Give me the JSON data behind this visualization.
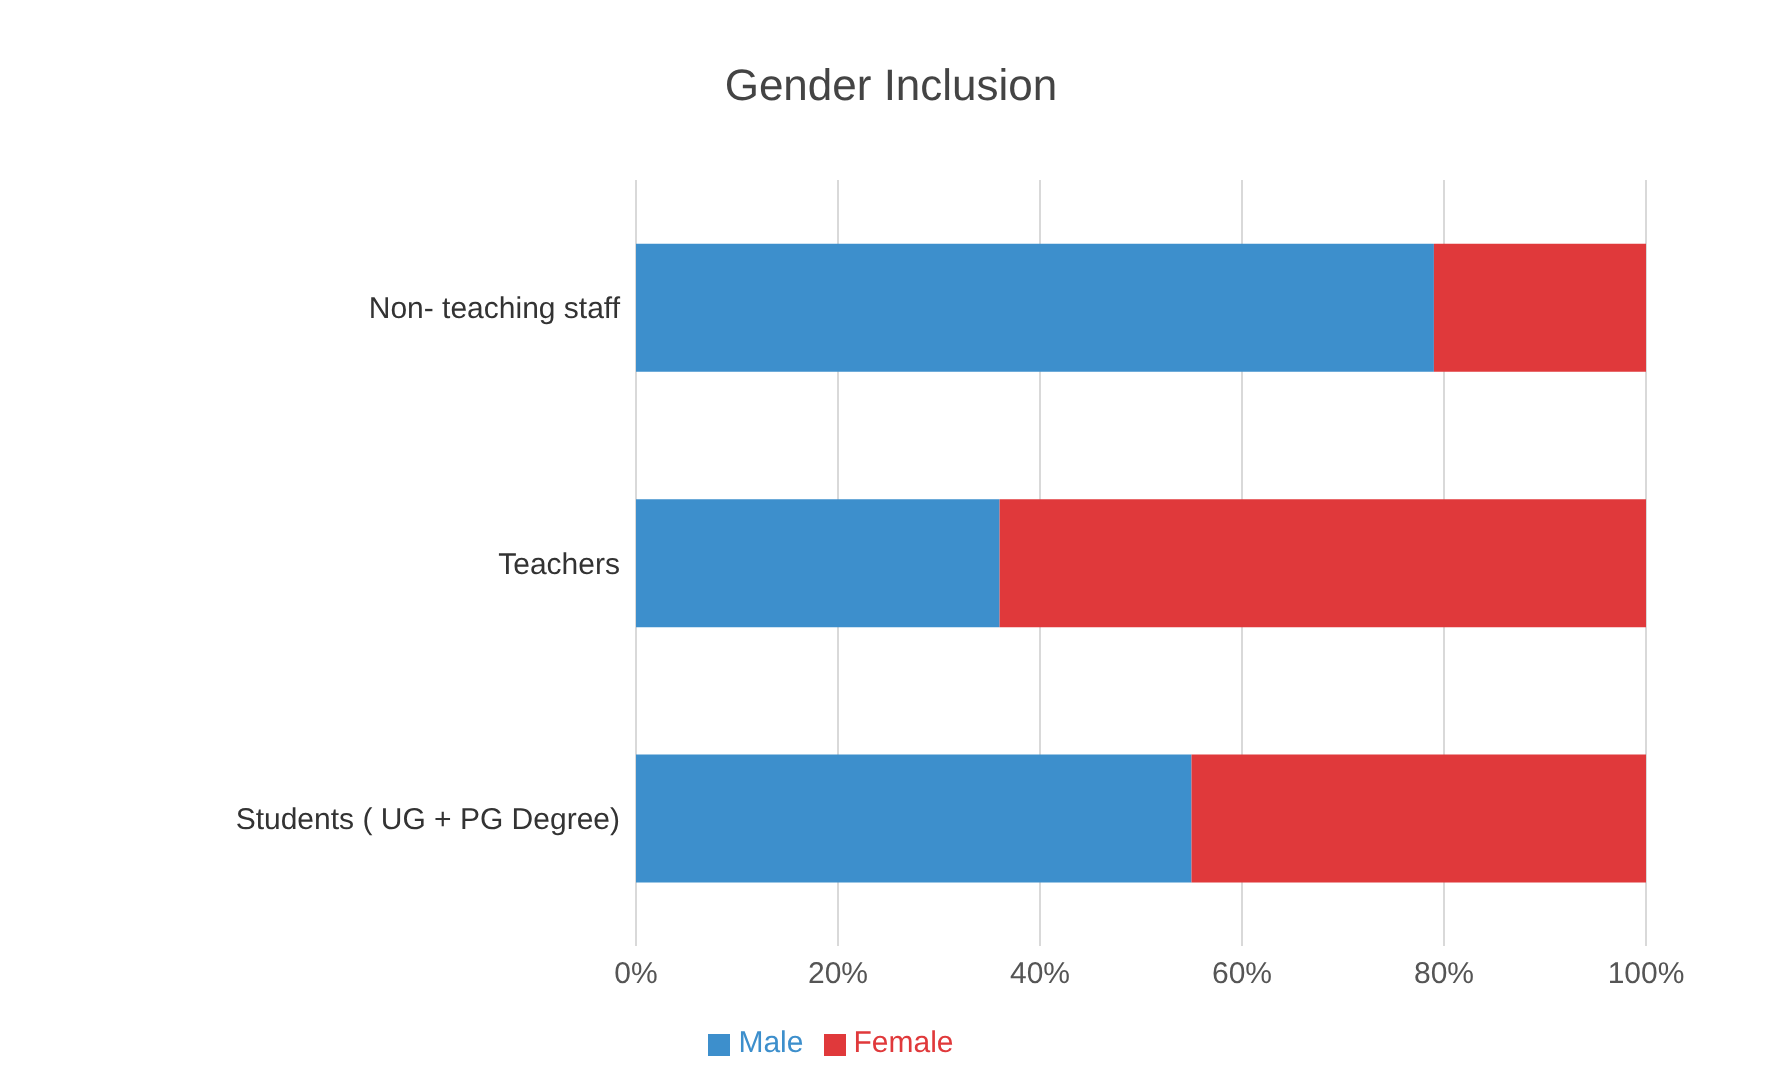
{
  "chart_data": {
    "type": "bar",
    "title": "Gender Inclusion",
    "orientation": "horizontal",
    "stacked": true,
    "categories": [
      "Non- teaching staff",
      "Teachers",
      "Students ( UG + PG  Degree)"
    ],
    "series": [
      {
        "name": "Male",
        "color": "#3d8fcc",
        "values": [
          79,
          36,
          55
        ]
      },
      {
        "name": "Female",
        "color": "#e0393b",
        "values": [
          21,
          64,
          45
        ]
      }
    ],
    "xlim": [
      0,
      100
    ],
    "xticks": [
      {
        "value": 0,
        "label": "0%"
      },
      {
        "value": 20,
        "label": "20%"
      },
      {
        "value": 40,
        "label": "40%"
      },
      {
        "value": 60,
        "label": "60%"
      },
      {
        "value": 80,
        "label": "80%"
      },
      {
        "value": 100,
        "label": "100%"
      }
    ],
    "grid": "x",
    "legend": "bottom"
  }
}
